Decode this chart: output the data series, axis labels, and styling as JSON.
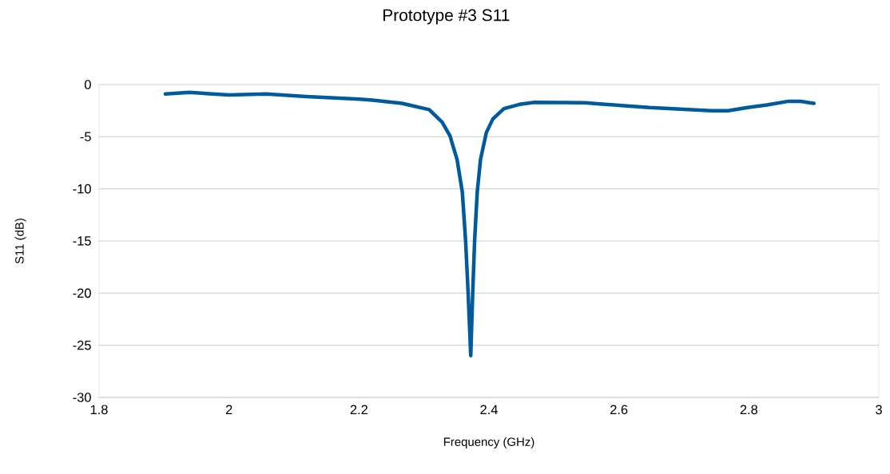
{
  "chart_data": {
    "type": "line",
    "title": "Prototype #3 S11",
    "xlabel": "Frequency  (GHz)",
    "ylabel": "S11 (dB)",
    "xlim": [
      1.8,
      3
    ],
    "ylim": [
      -30,
      0
    ],
    "xticks": [
      1.8,
      2,
      2.2,
      2.4,
      2.6,
      2.8,
      3
    ],
    "yticks": [
      -30,
      -25,
      -20,
      -15,
      -10,
      -5,
      0
    ],
    "grid": "y",
    "marker": "none",
    "line_style": "solid",
    "series": [
      {
        "color": "#005a9c",
        "x": [
          1.902,
          1.939,
          2.0,
          2.057,
          2.119,
          2.201,
          2.221,
          2.266,
          2.308,
          2.328,
          2.34,
          2.351,
          2.359,
          2.364,
          2.368,
          2.372,
          2.375,
          2.378,
          2.382,
          2.387,
          2.396,
          2.406,
          2.423,
          2.447,
          2.47,
          2.547,
          2.604,
          2.647,
          2.742,
          2.768,
          2.798,
          2.828,
          2.861,
          2.88,
          2.9
        ],
        "values": [
          -0.9,
          -0.75,
          -1.0,
          -0.9,
          -1.15,
          -1.4,
          -1.5,
          -1.8,
          -2.4,
          -3.6,
          -4.9,
          -7.2,
          -10.3,
          -14.9,
          -20,
          -26,
          -20,
          -14.9,
          -10.3,
          -7.2,
          -4.6,
          -3.3,
          -2.3,
          -1.9,
          -1.7,
          -1.75,
          -2.0,
          -2.2,
          -2.5,
          -2.5,
          -2.2,
          -1.95,
          -1.6,
          -1.6,
          -1.8
        ]
      }
    ]
  }
}
